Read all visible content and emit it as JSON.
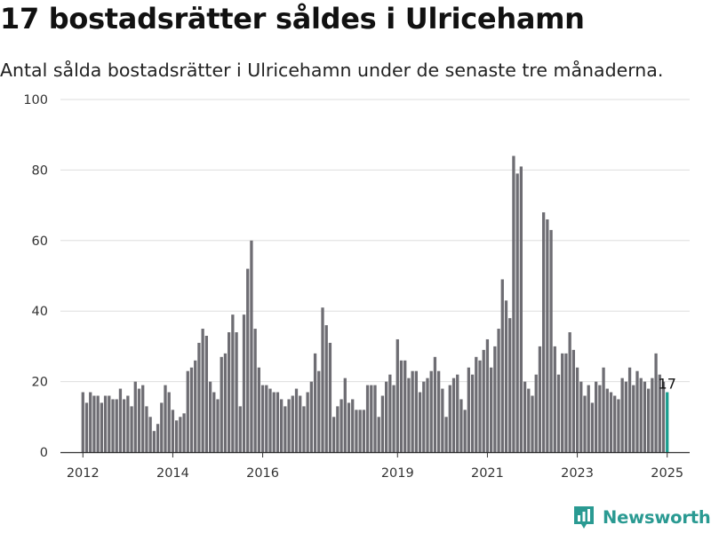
{
  "chart_data": {
    "type": "bar",
    "title": "17 bostadsrätter såldes i Ulricehamn",
    "subtitle": "Antal sålda bostadsrätter i Ulricehamn under de senaste tre månaderna.",
    "ylim": [
      0,
      100
    ],
    "yticks": [
      0,
      20,
      40,
      60,
      80,
      100
    ],
    "xlim": [
      "2011-07",
      "2025-07"
    ],
    "xticks": [
      {
        "x": "2012-01",
        "label": "2012"
      },
      {
        "x": "2014-01",
        "label": "2014"
      },
      {
        "x": "2016-01",
        "label": "2016"
      },
      {
        "x": "2019-01",
        "label": "2019"
      },
      {
        "x": "2021-01",
        "label": "2021"
      },
      {
        "x": "2023-01",
        "label": "2023"
      },
      {
        "x": "2025-01",
        "label": "2025"
      }
    ],
    "grid": true,
    "bar_color": "#6e6d73",
    "highlight_color": "#1a9e8f",
    "start_month": "2012-01",
    "values": [
      17,
      14,
      17,
      16,
      16,
      14,
      16,
      16,
      15,
      15,
      18,
      15,
      16,
      13,
      20,
      18,
      19,
      13,
      10,
      6,
      8,
      14,
      19,
      17,
      12,
      9,
      10,
      11,
      23,
      24,
      26,
      31,
      35,
      33,
      20,
      17,
      15,
      27,
      28,
      34,
      39,
      34,
      13,
      39,
      52,
      60,
      35,
      24,
      19,
      19,
      18,
      17,
      17,
      15,
      13,
      15,
      16,
      18,
      16,
      13,
      17,
      20,
      28,
      23,
      41,
      36,
      31,
      10,
      13,
      15,
      21,
      14,
      15,
      12,
      12,
      12,
      19,
      19,
      19,
      10,
      16,
      20,
      22,
      19,
      32,
      26,
      26,
      21,
      23,
      23,
      17,
      20,
      21,
      23,
      27,
      23,
      18,
      10,
      19,
      21,
      22,
      15,
      12,
      24,
      22,
      27,
      26,
      29,
      32,
      24,
      30,
      35,
      49,
      43,
      38,
      84,
      79,
      81,
      20,
      18,
      16,
      22,
      30,
      68,
      66,
      63,
      30,
      22,
      28,
      28,
      34,
      29,
      24,
      20,
      16,
      19,
      14,
      20,
      19,
      24,
      18,
      17,
      16,
      15,
      21,
      20,
      24,
      19,
      23,
      21,
      20,
      18,
      21,
      28,
      22,
      20,
      17
    ],
    "highlight_label": "17"
  },
  "brand": {
    "name": "Newsworthy",
    "icon": "bar-chart-logo-icon",
    "color": "#2a9a92"
  }
}
